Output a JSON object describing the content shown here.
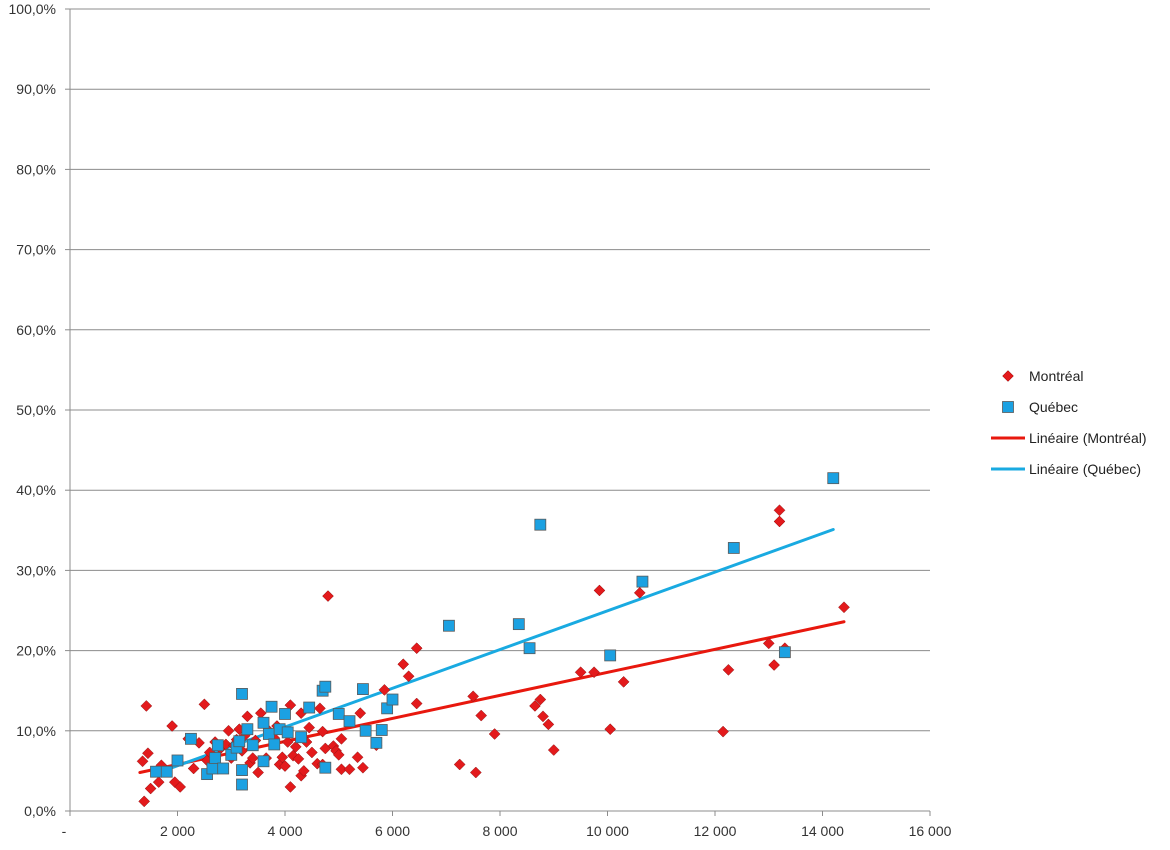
{
  "chart_data": {
    "type": "scatter",
    "title": "",
    "xlabel": "",
    "ylabel": "",
    "xlim": [
      0,
      16000
    ],
    "ylim": [
      0,
      100
    ],
    "grid": true,
    "legend_position": "right",
    "x_tick_labels": [
      "-",
      "2 000",
      "4 000",
      "6 000",
      "8 000",
      "10 000",
      "12 000",
      "14 000",
      "16 000"
    ],
    "x_tick_values": [
      0,
      2000,
      4000,
      6000,
      8000,
      10000,
      12000,
      14000,
      16000
    ],
    "y_tick_labels": [
      "0,0%",
      "10,0%",
      "20,0%",
      "30,0%",
      "40,0%",
      "50,0%",
      "60,0%",
      "70,0%",
      "80,0%",
      "90,0%",
      "100,0%"
    ],
    "y_tick_values": [
      0,
      10,
      20,
      30,
      40,
      50,
      60,
      70,
      80,
      90,
      100
    ],
    "series": [
      {
        "name": "Montréal",
        "marker": "diamond",
        "color": "#e31a1c",
        "points": [
          [
            1350,
            6.2
          ],
          [
            1450,
            7.2
          ],
          [
            1420,
            13.1
          ],
          [
            1380,
            1.2
          ],
          [
            1500,
            2.8
          ],
          [
            1650,
            3.6
          ],
          [
            1700,
            5.7
          ],
          [
            1900,
            10.6
          ],
          [
            1950,
            3.6
          ],
          [
            2050,
            3.0
          ],
          [
            2200,
            9.0
          ],
          [
            2300,
            5.3
          ],
          [
            2400,
            8.5
          ],
          [
            2500,
            13.3
          ],
          [
            2550,
            6.3
          ],
          [
            2600,
            7.3
          ],
          [
            2700,
            8.6
          ],
          [
            2800,
            7.8
          ],
          [
            2900,
            8.3
          ],
          [
            2950,
            10.0
          ],
          [
            3000,
            6.6
          ],
          [
            3050,
            8.2
          ],
          [
            3100,
            8.9
          ],
          [
            3150,
            10.2
          ],
          [
            3200,
            7.5
          ],
          [
            3250,
            9.4
          ],
          [
            3300,
            11.8
          ],
          [
            3350,
            6.0
          ],
          [
            3400,
            6.6
          ],
          [
            3450,
            8.8
          ],
          [
            3500,
            4.8
          ],
          [
            3550,
            12.2
          ],
          [
            3650,
            6.6
          ],
          [
            3700,
            10.0
          ],
          [
            3800,
            9.1
          ],
          [
            3850,
            10.6
          ],
          [
            3900,
            5.8
          ],
          [
            3950,
            6.7
          ],
          [
            4000,
            5.6
          ],
          [
            4050,
            8.6
          ],
          [
            4100,
            3.0
          ],
          [
            4100,
            13.2
          ],
          [
            4150,
            6.9
          ],
          [
            4200,
            8.0
          ],
          [
            4250,
            6.5
          ],
          [
            4300,
            12.2
          ],
          [
            4300,
            4.4
          ],
          [
            4350,
            5.0
          ],
          [
            4400,
            8.6
          ],
          [
            4450,
            10.4
          ],
          [
            4500,
            7.3
          ],
          [
            4600,
            5.9
          ],
          [
            4650,
            12.8
          ],
          [
            4700,
            5.8
          ],
          [
            4750,
            7.8
          ],
          [
            4700,
            9.9
          ],
          [
            4800,
            26.8
          ],
          [
            4900,
            8.1
          ],
          [
            4950,
            7.5
          ],
          [
            5000,
            7.0
          ],
          [
            5050,
            5.2
          ],
          [
            5050,
            9.0
          ],
          [
            5200,
            5.2
          ],
          [
            5350,
            6.7
          ],
          [
            5400,
            12.2
          ],
          [
            5450,
            5.4
          ],
          [
            5700,
            8.2
          ],
          [
            5850,
            15.1
          ],
          [
            6200,
            18.3
          ],
          [
            6300,
            16.8
          ],
          [
            6450,
            20.3
          ],
          [
            6450,
            13.4
          ],
          [
            7250,
            5.8
          ],
          [
            7500,
            14.3
          ],
          [
            7550,
            4.8
          ],
          [
            7650,
            11.9
          ],
          [
            7900,
            9.6
          ],
          [
            8650,
            13.1
          ],
          [
            8750,
            13.9
          ],
          [
            8800,
            11.8
          ],
          [
            8900,
            10.8
          ],
          [
            9000,
            7.6
          ],
          [
            9500,
            17.3
          ],
          [
            9750,
            17.3
          ],
          [
            9850,
            27.5
          ],
          [
            10050,
            10.2
          ],
          [
            10300,
            16.1
          ],
          [
            10600,
            27.2
          ],
          [
            12150,
            9.9
          ],
          [
            12250,
            17.6
          ],
          [
            13000,
            20.9
          ],
          [
            13100,
            18.2
          ],
          [
            13200,
            37.5
          ],
          [
            13200,
            36.1
          ],
          [
            13300,
            20.3
          ],
          [
            14400,
            25.4
          ]
        ],
        "trendline": {
          "name": "Linéaire (Montréal)",
          "color": "#e8180e",
          "from": [
            1300,
            4.8
          ],
          "to": [
            14400,
            23.6
          ]
        }
      },
      {
        "name": "Québec",
        "marker": "square",
        "color": "#1ba1e2",
        "points": [
          [
            1600,
            4.9
          ],
          [
            1800,
            4.9
          ],
          [
            2000,
            6.3
          ],
          [
            2250,
            9.0
          ],
          [
            2550,
            4.6
          ],
          [
            2650,
            5.3
          ],
          [
            2700,
            6.6
          ],
          [
            2750,
            8.2
          ],
          [
            2850,
            5.3
          ],
          [
            3000,
            7.0
          ],
          [
            3100,
            7.9
          ],
          [
            3150,
            8.7
          ],
          [
            3200,
            5.1
          ],
          [
            3200,
            14.6
          ],
          [
            3200,
            3.3
          ],
          [
            3300,
            10.2
          ],
          [
            3400,
            8.2
          ],
          [
            3600,
            11.0
          ],
          [
            3600,
            6.2
          ],
          [
            3700,
            9.6
          ],
          [
            3750,
            13.0
          ],
          [
            3800,
            8.3
          ],
          [
            3900,
            10.2
          ],
          [
            4000,
            12.1
          ],
          [
            4050,
            9.8
          ],
          [
            4300,
            9.2
          ],
          [
            4450,
            12.9
          ],
          [
            4700,
            15.0
          ],
          [
            4750,
            15.5
          ],
          [
            4750,
            5.4
          ],
          [
            5000,
            12.1
          ],
          [
            5200,
            11.2
          ],
          [
            5450,
            15.2
          ],
          [
            5500,
            10.0
          ],
          [
            5700,
            8.5
          ],
          [
            5800,
            10.1
          ],
          [
            5900,
            12.8
          ],
          [
            6000,
            13.9
          ],
          [
            7050,
            23.1
          ],
          [
            8350,
            23.3
          ],
          [
            8550,
            20.3
          ],
          [
            8750,
            35.7
          ],
          [
            10050,
            19.4
          ],
          [
            10650,
            28.6
          ],
          [
            12350,
            32.8
          ],
          [
            13300,
            19.8
          ],
          [
            14200,
            41.5
          ]
        ],
        "trendline": {
          "name": "Linéaire (Québec)",
          "color": "#19aae1",
          "from": [
            1650,
            4.8
          ],
          "to": [
            14200,
            35.1
          ]
        }
      }
    ]
  }
}
